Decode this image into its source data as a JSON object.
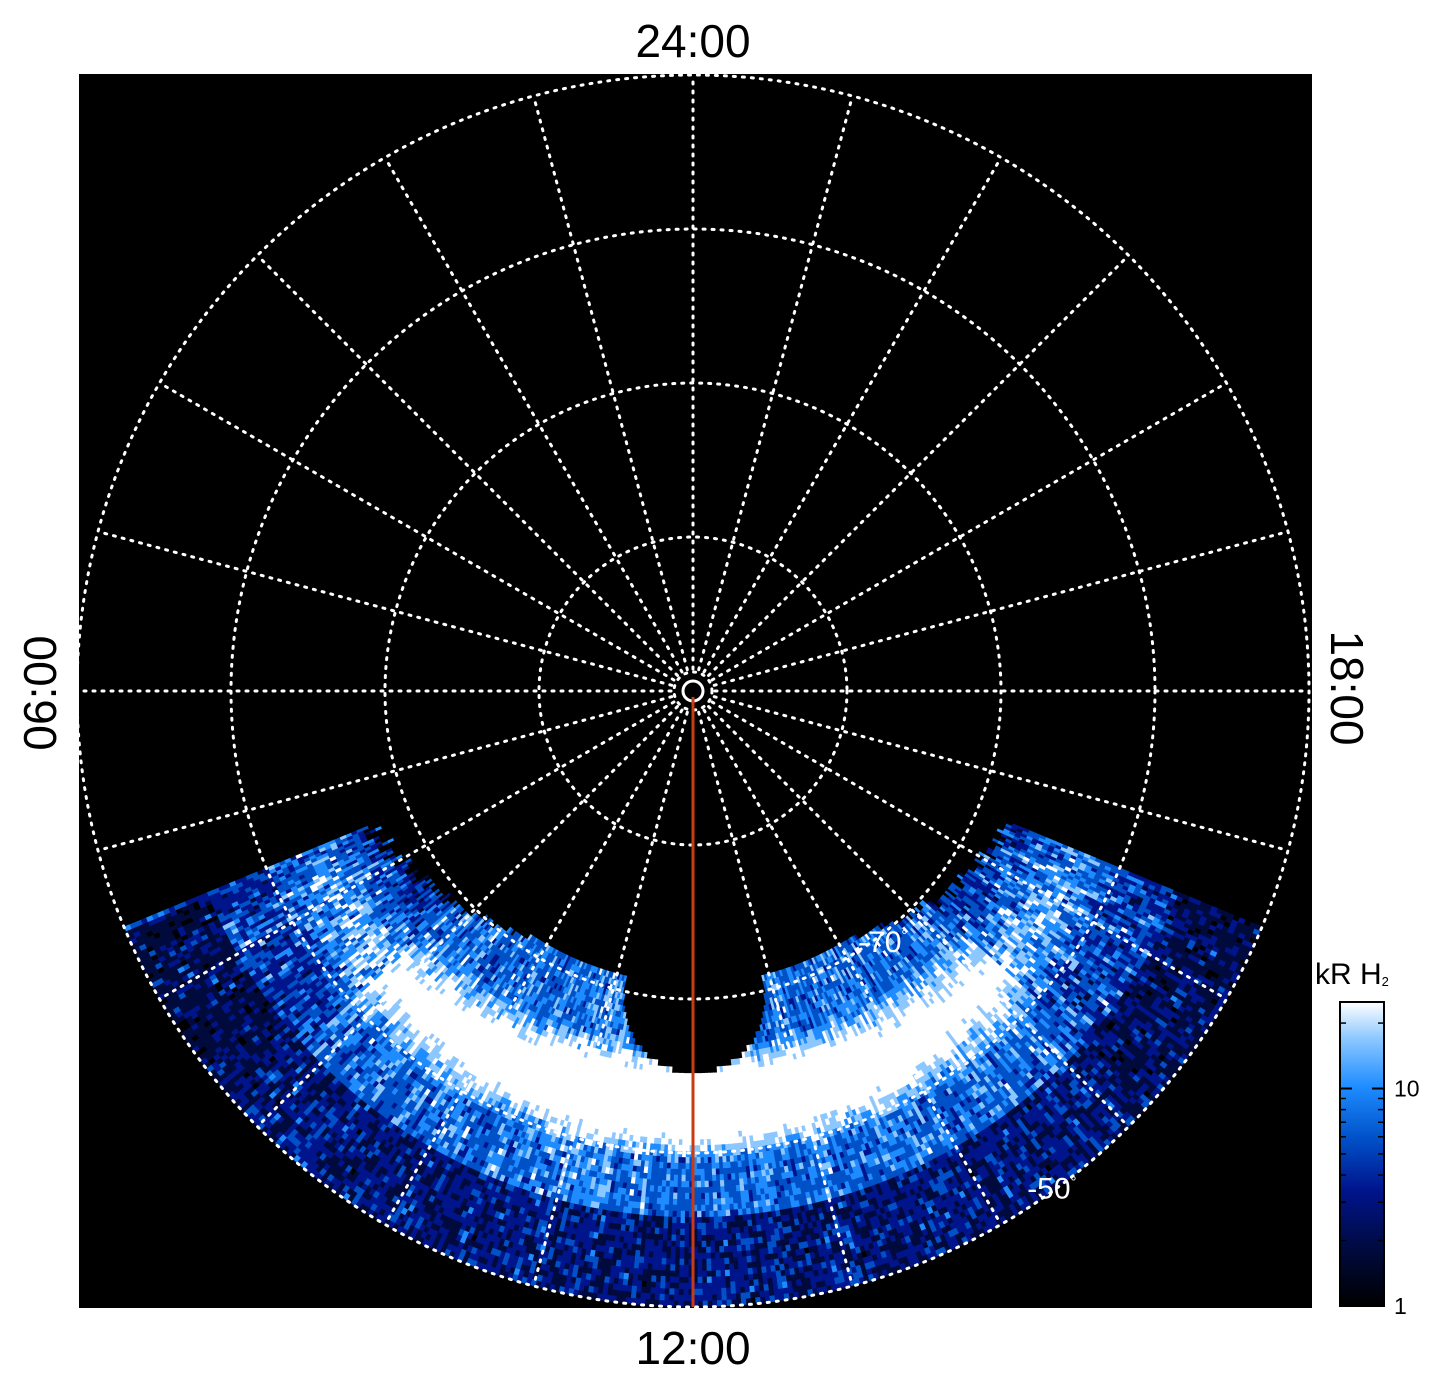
{
  "chart_data": {
    "type": "heatmap",
    "projection": "polar, south pole",
    "local_time_labels": {
      "top": "24:00",
      "bottom": "12:00",
      "left": "06:00",
      "right": "18:00"
    },
    "latitude_circles_deg": [
      -50,
      -60,
      -70,
      -80,
      -89
    ],
    "latitude_labels": [
      {
        "text": "-70",
        "unit": "°"
      },
      {
        "text": "-50",
        "unit": "°"
      }
    ],
    "meridian_spacing_hours": 1,
    "grid": true,
    "grid_style": "dotted white",
    "background_color": "#000000",
    "marker_line": {
      "local_time": "12:00",
      "from_lat": -90,
      "to_lat": -50,
      "color": "#c83c14"
    },
    "emission": {
      "local_time_range": [
        "07:30",
        "16:30"
      ],
      "latitude_range_deg": [
        -50,
        -71
      ],
      "main_band_latitude_deg": [
        -60,
        -66
      ],
      "units": "kR"
    },
    "colorbar": {
      "title": "kR H",
      "title_subscript": "2",
      "scale": "log",
      "range": [
        1,
        25
      ],
      "ticks": [
        {
          "value": 1,
          "label": "1"
        },
        {
          "value": 10,
          "label": "10"
        }
      ],
      "colors": [
        "#000000",
        "#000a3c",
        "#00148c",
        "#0050c8",
        "#1e8cff",
        "#8cc8ff",
        "#ffffff"
      ]
    }
  }
}
